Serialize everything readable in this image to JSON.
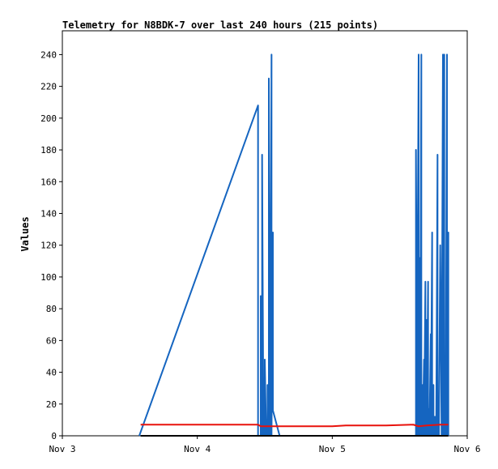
{
  "chart_data": {
    "type": "line",
    "title": "Telemetry for N8BDK-7 over last 240 hours (215 points)",
    "xlabel": "",
    "ylabel": "Values",
    "xlim": [
      "Nov 3",
      "Nov 6"
    ],
    "ylim": [
      0,
      255
    ],
    "x_ticks": [
      "Nov 3",
      "Nov 4",
      "Nov 5",
      "Nov 6"
    ],
    "y_ticks": [
      0,
      20,
      40,
      60,
      80,
      100,
      120,
      140,
      160,
      180,
      200,
      220,
      240
    ],
    "grid": false,
    "legend": "none",
    "x_unit_note": "x in days since Nov 3",
    "series": [
      {
        "color": "#1565c0",
        "points": [
          [
            0.57,
            0
          ],
          [
            1.45,
            208
          ],
          [
            1.45,
            0
          ],
          [
            1.47,
            0
          ],
          [
            1.47,
            88
          ],
          [
            1.48,
            0
          ],
          [
            1.48,
            177
          ],
          [
            1.49,
            0
          ],
          [
            1.49,
            32
          ],
          [
            1.5,
            0
          ],
          [
            1.5,
            48
          ],
          [
            1.51,
            0
          ],
          [
            1.51,
            10
          ],
          [
            1.52,
            0
          ],
          [
            1.52,
            32
          ],
          [
            1.53,
            0
          ],
          [
            1.53,
            97
          ],
          [
            1.53,
            225
          ],
          [
            1.54,
            0
          ],
          [
            1.55,
            240
          ],
          [
            1.55,
            0
          ],
          [
            1.56,
            128
          ],
          [
            1.56,
            16
          ],
          [
            1.61,
            0
          ],
          [
            2.62,
            0
          ],
          [
            2.62,
            180
          ],
          [
            2.63,
            0
          ],
          [
            2.63,
            60
          ],
          [
            2.64,
            240
          ],
          [
            2.64,
            0
          ],
          [
            2.65,
            112
          ],
          [
            2.65,
            0
          ],
          [
            2.66,
            240
          ],
          [
            2.66,
            0
          ],
          [
            2.67,
            32
          ],
          [
            2.67,
            0
          ],
          [
            2.68,
            48
          ],
          [
            2.68,
            0
          ],
          [
            2.69,
            97
          ],
          [
            2.69,
            0
          ],
          [
            2.7,
            73
          ],
          [
            2.7,
            0
          ],
          [
            2.71,
            97
          ],
          [
            2.71,
            0
          ],
          [
            2.72,
            17
          ],
          [
            2.72,
            0
          ],
          [
            2.73,
            64
          ],
          [
            2.73,
            0
          ],
          [
            2.74,
            128
          ],
          [
            2.74,
            0
          ],
          [
            2.75,
            32
          ],
          [
            2.75,
            0
          ],
          [
            2.76,
            12
          ],
          [
            2.76,
            0
          ],
          [
            2.77,
            0
          ],
          [
            2.78,
            177
          ],
          [
            2.78,
            0
          ],
          [
            2.79,
            17
          ],
          [
            2.79,
            0
          ],
          [
            2.8,
            120
          ],
          [
            2.81,
            0
          ],
          [
            2.82,
            240
          ],
          [
            2.82,
            0
          ],
          [
            2.83,
            240
          ],
          [
            2.83,
            0
          ],
          [
            2.84,
            0
          ],
          [
            2.85,
            240
          ],
          [
            2.85,
            0
          ],
          [
            2.86,
            128
          ],
          [
            2.86,
            0
          ]
        ]
      },
      {
        "color": "#e8120c",
        "points": [
          [
            0.58,
            7
          ],
          [
            1.45,
            7
          ],
          [
            1.47,
            6
          ],
          [
            1.55,
            6
          ],
          [
            1.6,
            6
          ],
          [
            2.0,
            6
          ],
          [
            2.1,
            6.5
          ],
          [
            2.4,
            6.5
          ],
          [
            2.6,
            7
          ],
          [
            2.64,
            6
          ],
          [
            2.7,
            6.5
          ],
          [
            2.8,
            7
          ],
          [
            2.86,
            7
          ]
        ]
      },
      {
        "color": "#000000",
        "points": [
          [
            0.58,
            0
          ],
          [
            2.86,
            0
          ]
        ]
      }
    ]
  }
}
